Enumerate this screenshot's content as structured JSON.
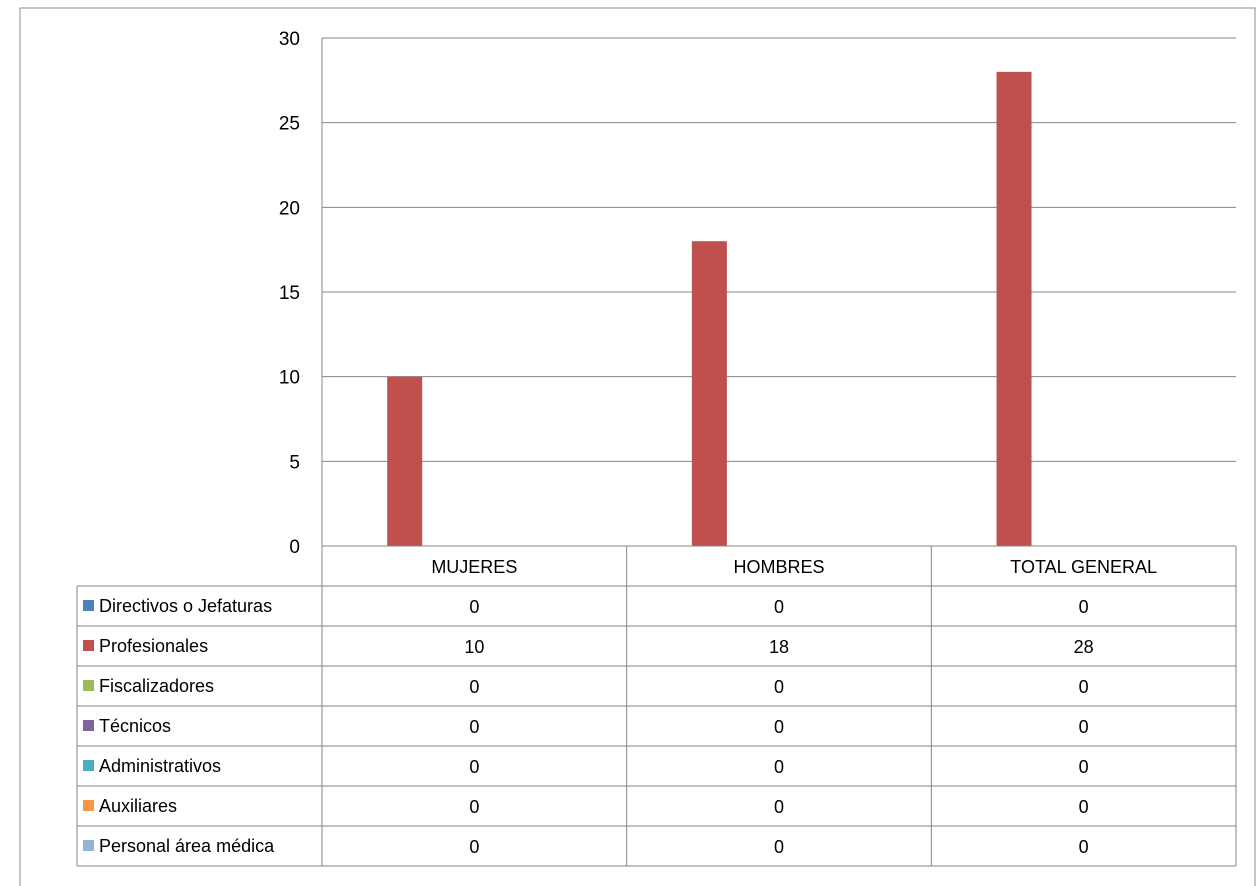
{
  "chart_data": {
    "type": "bar",
    "title": "",
    "xlabel": "",
    "ylabel": "",
    "ylim": [
      0,
      30
    ],
    "yticks": [
      0,
      5,
      10,
      15,
      20,
      25,
      30
    ],
    "grid": true,
    "legend": "data-table-left",
    "categories": [
      "MUJERES",
      "HOMBRES",
      "TOTAL GENERAL"
    ],
    "series": [
      {
        "name": "Directivos o Jefaturas",
        "color": "#4f81bd",
        "values": [
          0,
          0,
          0
        ]
      },
      {
        "name": "Profesionales",
        "color": "#c0504d",
        "values": [
          10,
          18,
          28
        ]
      },
      {
        "name": "Fiscalizadores",
        "color": "#9bbb59",
        "values": [
          0,
          0,
          0
        ]
      },
      {
        "name": "Técnicos",
        "color": "#8064a2",
        "values": [
          0,
          0,
          0
        ]
      },
      {
        "name": "Administrativos",
        "color": "#4bacc6",
        "values": [
          0,
          0,
          0
        ]
      },
      {
        "name": "Auxiliares",
        "color": "#f79646",
        "values": [
          0,
          0,
          0
        ]
      },
      {
        "name": "Personal área médica",
        "color": "#95b3d7",
        "values": [
          0,
          0,
          0
        ]
      }
    ]
  }
}
